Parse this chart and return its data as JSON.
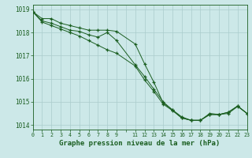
{
  "background_color": "#cce8e8",
  "grid_color": "#aacccc",
  "line_color": "#1a5e20",
  "xlabel": "Graphe pression niveau de la mer (hPa)",
  "xlabel_fontsize": 6.5,
  "ylim": [
    1013.8,
    1019.2
  ],
  "xlim": [
    0,
    23
  ],
  "yticks": [
    1014,
    1015,
    1016,
    1017,
    1018,
    1019
  ],
  "xtick_labels": [
    "0",
    "1",
    "2",
    "3",
    "4",
    "5",
    "6",
    "7",
    "8",
    "9",
    "",
    "11",
    "12",
    "13",
    "14",
    "15",
    "16",
    "17",
    "18",
    "19",
    "20",
    "21",
    "22",
    "23"
  ],
  "series1_x": [
    0,
    1,
    2,
    3,
    4,
    5,
    6,
    7,
    8,
    9,
    11,
    12,
    13,
    14,
    15,
    16,
    17,
    18,
    19,
    20,
    21,
    22,
    23
  ],
  "series1_y": [
    1018.9,
    1018.6,
    1018.6,
    1018.4,
    1018.3,
    1018.2,
    1018.1,
    1018.1,
    1018.1,
    1018.05,
    1017.5,
    1016.65,
    1015.85,
    1014.95,
    1014.65,
    1014.3,
    1014.2,
    1014.2,
    1014.5,
    1014.45,
    1014.5,
    1014.8,
    1014.5
  ],
  "series2_x": [
    0,
    1,
    2,
    3,
    4,
    5,
    6,
    7,
    8,
    9,
    11,
    12,
    13,
    14,
    15,
    16,
    17,
    18,
    19,
    20,
    21,
    22,
    23
  ],
  "series2_y": [
    1018.9,
    1018.5,
    1018.4,
    1018.25,
    1018.1,
    1018.05,
    1017.9,
    1017.8,
    1018.0,
    1017.65,
    1016.6,
    1016.1,
    1015.55,
    1015.0,
    1014.65,
    1014.35,
    1014.2,
    1014.2,
    1014.45,
    1014.45,
    1014.55,
    1014.82,
    1014.5
  ],
  "series3_x": [
    0,
    1,
    2,
    3,
    4,
    5,
    6,
    7,
    8,
    9,
    11,
    12,
    13,
    14,
    15,
    16,
    17,
    18,
    19,
    20,
    21,
    22,
    23
  ],
  "series3_y": [
    1018.9,
    1018.45,
    1018.3,
    1018.15,
    1018.0,
    1017.85,
    1017.65,
    1017.45,
    1017.25,
    1017.1,
    1016.55,
    1015.95,
    1015.45,
    1014.9,
    1014.62,
    1014.3,
    1014.2,
    1014.2,
    1014.45,
    1014.45,
    1014.55,
    1014.82,
    1014.5
  ]
}
